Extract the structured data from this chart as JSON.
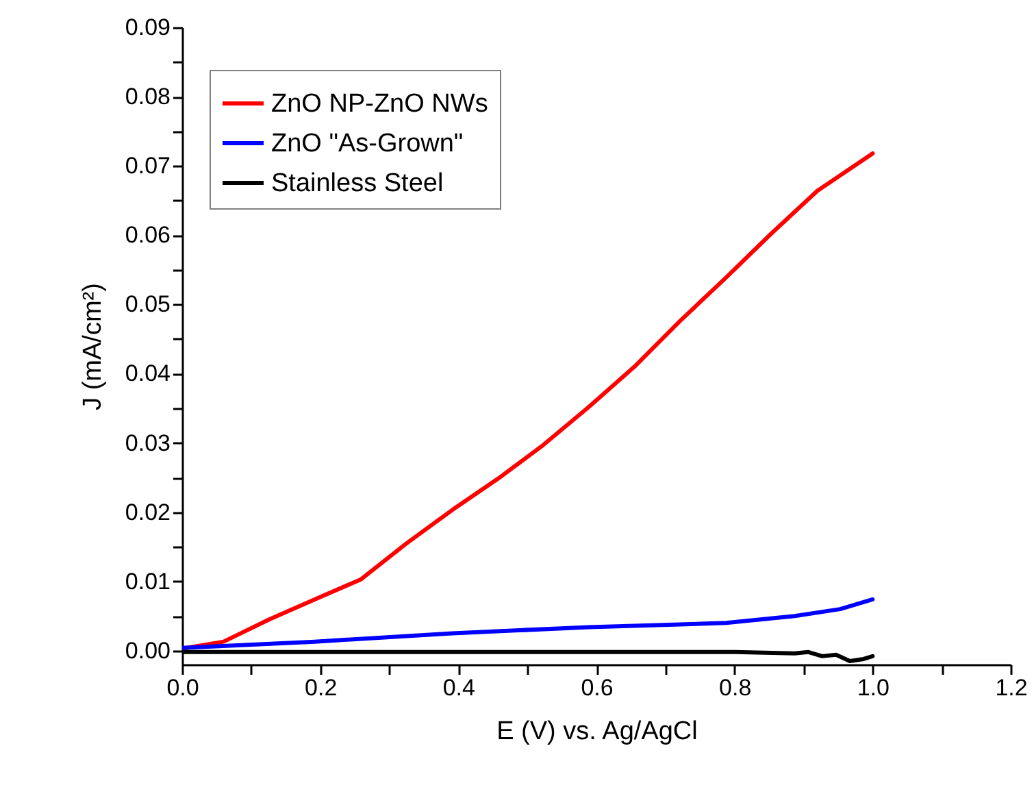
{
  "chart_data": {
    "type": "line",
    "xlabel": "E (V) vs. Ag/AgCl",
    "ylabel": "J (mA/cm²)",
    "xlim": [
      0,
      1.2
    ],
    "ylim": [
      -0.002,
      0.09
    ],
    "xticks": [
      {
        "value": 0,
        "label": "0.0"
      },
      {
        "value": 0.1,
        "label": null
      },
      {
        "value": 0.2,
        "label": "0.2"
      },
      {
        "value": 0.3,
        "label": null
      },
      {
        "value": 0.4,
        "label": "0.4"
      },
      {
        "value": 0.5,
        "label": null
      },
      {
        "value": 0.6,
        "label": "0.6"
      },
      {
        "value": 0.7,
        "label": null
      },
      {
        "value": 0.8,
        "label": "0.8"
      },
      {
        "value": 0.9,
        "label": null
      },
      {
        "value": 1,
        "label": "1.0"
      },
      {
        "value": 1.1,
        "label": null
      },
      {
        "value": 1.2,
        "label": "1.2"
      }
    ],
    "yticks": [
      {
        "value": 0,
        "label": "0.00"
      },
      {
        "value": 0.005,
        "label": null
      },
      {
        "value": 0.01,
        "label": "0.01"
      },
      {
        "value": 0.015,
        "label": null
      },
      {
        "value": 0.02,
        "label": "0.02"
      },
      {
        "value": 0.025,
        "label": null
      },
      {
        "value": 0.03,
        "label": "0.03"
      },
      {
        "value": 0.035,
        "label": null
      },
      {
        "value": 0.04,
        "label": "0.04"
      },
      {
        "value": 0.045,
        "label": null
      },
      {
        "value": 0.05,
        "label": "0.05"
      },
      {
        "value": 0.055,
        "label": null
      },
      {
        "value": 0.06,
        "label": "0.06"
      },
      {
        "value": 0.065,
        "label": null
      },
      {
        "value": 0.07,
        "label": "0.07"
      },
      {
        "value": 0.075,
        "label": null
      },
      {
        "value": 0.08,
        "label": "0.08"
      },
      {
        "value": 0.085,
        "label": null
      },
      {
        "value": 0.09,
        "label": "0.09"
      }
    ],
    "grid": false,
    "legend": "top left",
    "line_style": "solid",
    "series": [
      {
        "name": "ZnO NP-ZnO NWs",
        "color": "#ff0000",
        "x": [
          0,
          0.06,
          0.126,
          0.192,
          0.259,
          0.325,
          0.391,
          0.457,
          0.523,
          0.589,
          0.655,
          0.722,
          0.788,
          0.854,
          0.92,
          1.0
        ],
        "values": [
          0.0003,
          0.0013,
          0.0045,
          0.0074,
          0.0103,
          0.0155,
          0.0203,
          0.0248,
          0.0297,
          0.0352,
          0.041,
          0.0477,
          0.0539,
          0.0603,
          0.0664,
          0.0718
        ]
      },
      {
        "name": "ZnO \"As-Grown\"",
        "color": "#0000ff",
        "x": [
          0,
          0.192,
          0.391,
          0.589,
          0.788,
          0.887,
          0.953,
          1.0
        ],
        "values": [
          0.0004,
          0.0013,
          0.0025,
          0.0034,
          0.004,
          0.005,
          0.006,
          0.0074
        ]
      },
      {
        "name": "Stainless Steel",
        "color": "#000000",
        "x": [
          0,
          0.2,
          0.4,
          0.6,
          0.8,
          0.887,
          0.907,
          0.927,
          0.947,
          0.967,
          0.987,
          1.0
        ],
        "values": [
          -0.0002,
          -0.0002,
          -0.0002,
          -0.0002,
          -0.0002,
          -0.0004,
          -0.0002,
          -0.0008,
          -0.0006,
          -0.0015,
          -0.0012,
          -0.0008
        ]
      }
    ]
  }
}
